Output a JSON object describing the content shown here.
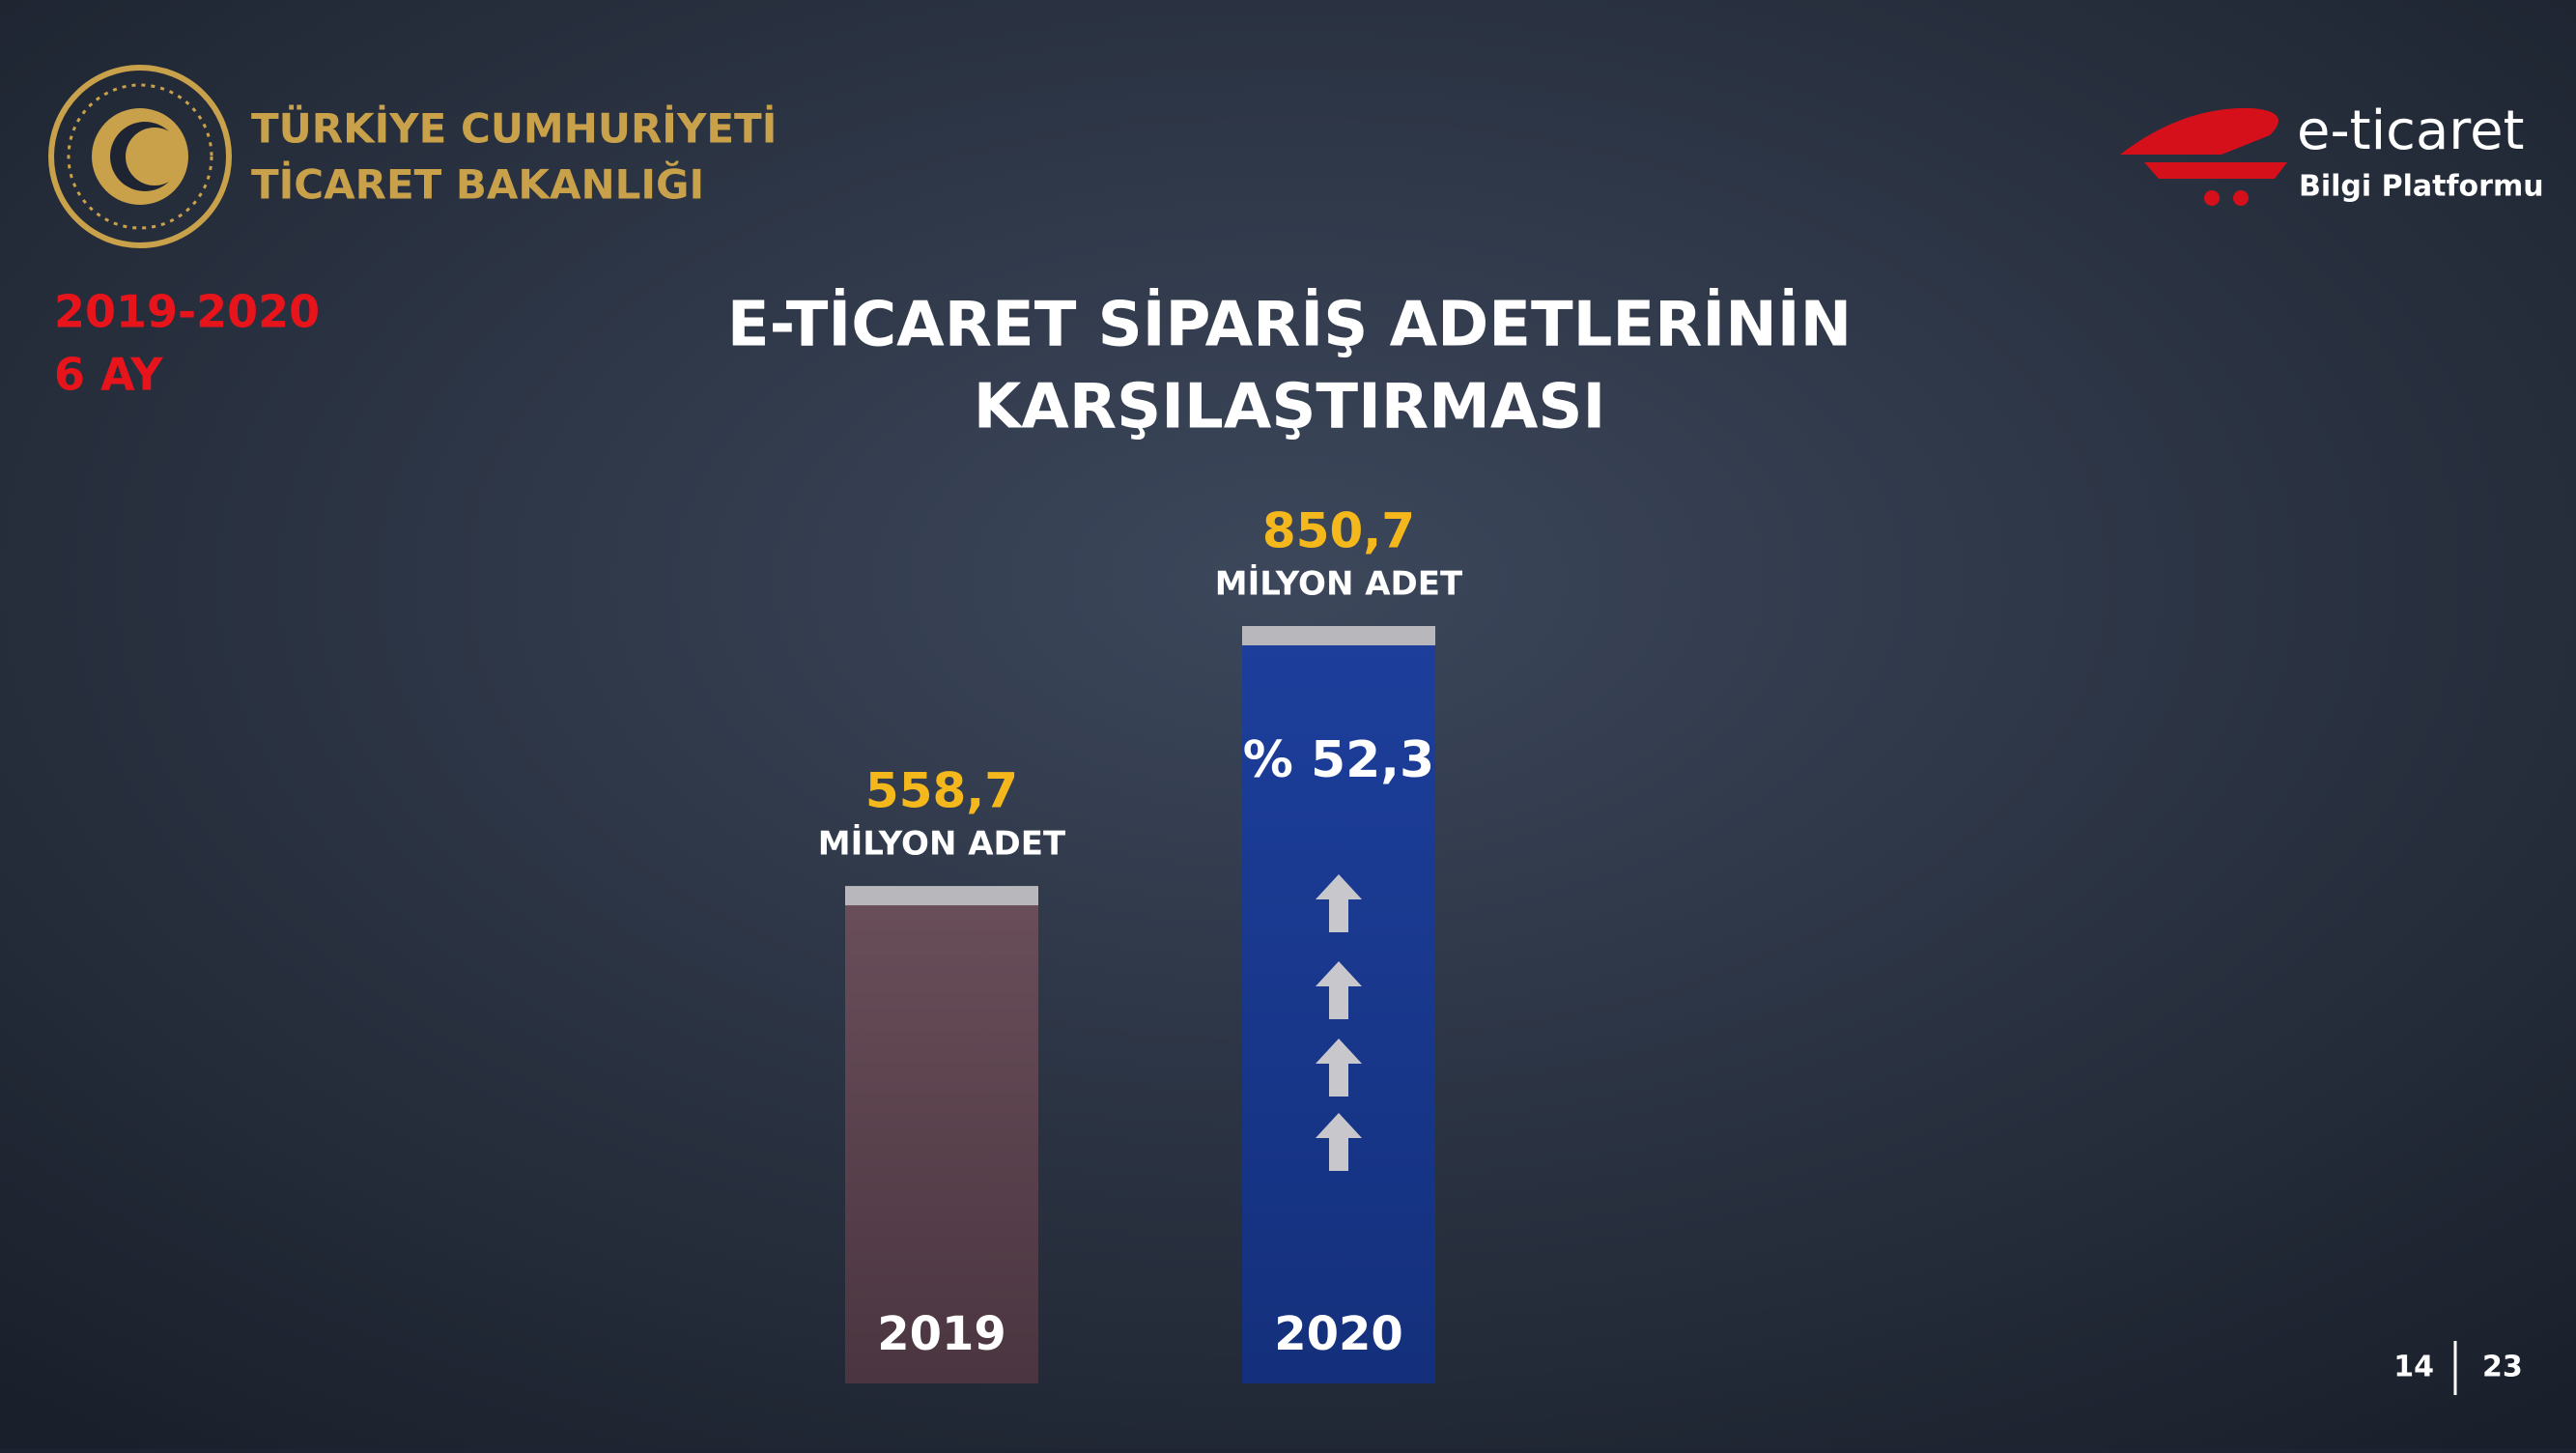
{
  "header": {
    "title_line1": "TÜRKİYE CUMHURİYETİ",
    "title_line2": "TİCARET BAKANLIĞI",
    "period": "2019-2020",
    "period_span": "6 AY",
    "logo_main": "e-ticaret",
    "logo_sub": "Bilgi Platformu"
  },
  "chart_data": {
    "type": "bar",
    "title_line1": "E-TİCARET SİPARİŞ ADETLERİNİN",
    "title_line2": "KARŞILAŞTIRMASI",
    "categories": [
      "2019",
      "2020"
    ],
    "values": [
      558.7,
      850.7
    ],
    "value_labels": [
      "558,7",
      "850,7"
    ],
    "unit": "MİLYON ADET",
    "colors": [
      "#5a414b",
      "#1a3a92"
    ],
    "annotation": "% 52,3"
  },
  "footer": {
    "page": "14",
    "total": "23"
  }
}
